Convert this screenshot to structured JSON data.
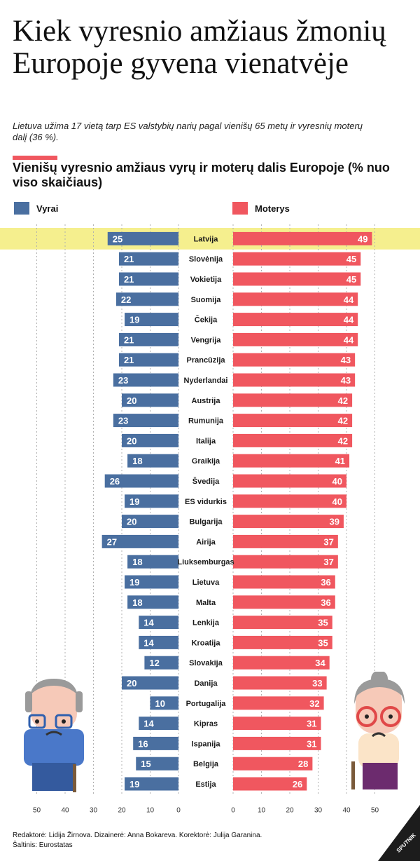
{
  "header": {
    "title": "Kiek vyresnio amžiaus žmonių Europoje gyvena vienatvėje",
    "subtitle": "Lietuva užima 17 vietą tarp ES valstybių narių pagal vienišų 65 metų ir vyresnių moterų dalį (36 %)."
  },
  "colors": {
    "men": "#4a6fa0",
    "women": "#f0575f",
    "highlight": "#f5ef8e",
    "grid": "#b0b0b0",
    "dark": "#1c1c1c"
  },
  "chart_data": {
    "type": "bar",
    "title": "Vienišų vyresnio amžiaus vyrų ir moterų dalis Europoje (% nuo viso skaičiaus)",
    "legend_position": "top",
    "grid": true,
    "highlighted_category": "Latvija",
    "categories": [
      "Latvija",
      "Slovėnija",
      "Vokietija",
      "Suomija",
      "Čekija",
      "Vengrija",
      "Prancūzija",
      "Nyderlandai",
      "Austrija",
      "Rumunija",
      "Italija",
      "Graikija",
      "Švedija",
      "ES vidurkis",
      "Bulgarija",
      "Airija",
      "Liuksemburgas",
      "Lietuva",
      "Malta",
      "Lenkija",
      "Kroatija",
      "Slovakija",
      "Danija",
      "Portugalija",
      "Kipras",
      "Ispanija",
      "Belgija",
      "Estija"
    ],
    "series": [
      {
        "name": "Vyrai",
        "values": [
          25,
          21,
          21,
          22,
          19,
          21,
          21,
          23,
          20,
          23,
          20,
          18,
          26,
          19,
          20,
          27,
          18,
          19,
          18,
          14,
          14,
          12,
          20,
          10,
          14,
          16,
          15,
          19
        ]
      },
      {
        "name": "Moterys",
        "values": [
          49,
          45,
          45,
          44,
          44,
          44,
          43,
          43,
          42,
          42,
          42,
          41,
          40,
          40,
          39,
          37,
          37,
          36,
          36,
          35,
          35,
          34,
          33,
          32,
          31,
          31,
          28,
          26
        ]
      }
    ],
    "xlim_men": [
      50,
      0
    ],
    "xlim_women": [
      0,
      50
    ],
    "ticks_men": [
      "50",
      "40",
      "30",
      "20",
      "10",
      "0"
    ],
    "ticks_women": [
      "0",
      "10",
      "20",
      "30",
      "40",
      "50"
    ]
  },
  "footer": {
    "credits_line1": "Redaktorė: Lidija Žirnova. Dizainerė: Anna Bokareva. Korektorė: Julija Garanina.",
    "credits_line2": "Šaltinis: Eurostatas",
    "brand": "SPUTNIK"
  }
}
